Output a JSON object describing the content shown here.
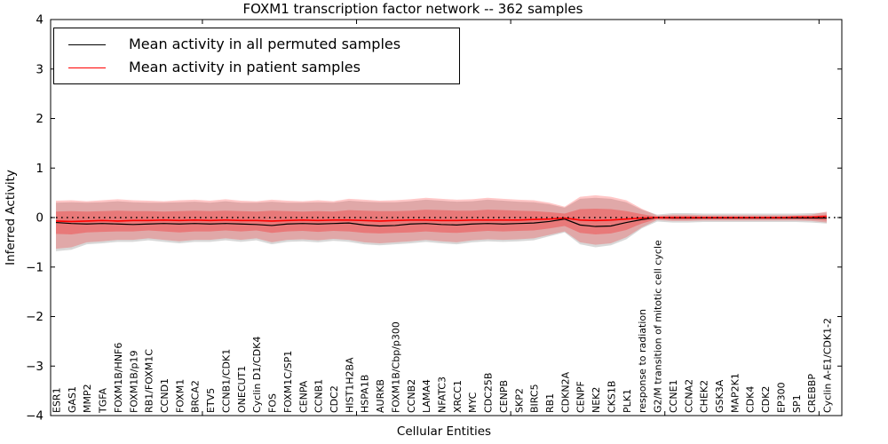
{
  "figure": {
    "title": "FOXM1 transcription factor network -- 362 samples"
  },
  "chart_data": {
    "type": "line",
    "title": "FOXM1 transcription factor network -- 362 samples",
    "xlabel": "Cellular Entities",
    "ylabel": "Inferred Activity",
    "ylim": [
      -4,
      4
    ],
    "yticks": [
      -4,
      -3,
      -2,
      -1,
      0,
      1,
      2,
      3,
      4
    ],
    "x_major_tick_interval": 10,
    "grid": false,
    "legend_position": "upper left",
    "zero_line": {
      "style": "dotted",
      "color": "#000000",
      "y": 0
    },
    "categories": [
      "ESR1",
      "GAS1",
      "MMP2",
      "TGFA",
      "FOXM1B/HNF6",
      "FOXM1B/p19",
      "RB1/FOXM1C",
      "CCND1",
      "FOXM1",
      "BRCA2",
      "ETV5",
      "CCNB1/CDK1",
      "ONECUT1",
      "Cyclin D1/CDK4",
      "FOS",
      "FOXM1C/SP1",
      "CENPA",
      "CCNB1",
      "CDC2",
      "HIST1H2BA",
      "HSPA1B",
      "AURKB",
      "FOXM1B/Cbp/p300",
      "CCNB2",
      "LAMA4",
      "NFATC3",
      "XRCC1",
      "MYC",
      "CDC25B",
      "CENPB",
      "SKP2",
      "BIRC5",
      "RB1",
      "CDKN2A",
      "CENPF",
      "NEK2",
      "CKS1B",
      "PLK1",
      "response to radiation",
      "G2/M transition of mitotic cell cycle",
      "CCNE1",
      "CCNA2",
      "CHEK2",
      "GSK3A",
      "MAP2K1",
      "CDK4",
      "CDK2",
      "EP300",
      "SP1",
      "CREBBP",
      "Cyclin A-E1/CDK1-2"
    ],
    "series": [
      {
        "name": "Mean activity in all permuted samples",
        "color": "#000000",
        "values": [
          -0.1,
          -0.12,
          -0.13,
          -0.12,
          -0.13,
          -0.14,
          -0.13,
          -0.12,
          -0.13,
          -0.12,
          -0.13,
          -0.12,
          -0.13,
          -0.14,
          -0.16,
          -0.13,
          -0.12,
          -0.13,
          -0.12,
          -0.11,
          -0.15,
          -0.17,
          -0.16,
          -0.13,
          -0.12,
          -0.14,
          -0.15,
          -0.13,
          -0.12,
          -0.13,
          -0.12,
          -0.11,
          -0.08,
          -0.03,
          -0.15,
          -0.18,
          -0.17,
          -0.1,
          -0.04,
          0.0,
          -0.01,
          -0.01,
          -0.01,
          -0.01,
          -0.01,
          -0.01,
          -0.01,
          -0.01,
          -0.01,
          -0.01,
          -0.01
        ]
      },
      {
        "name": "Mean activity in patient samples",
        "color": "#ff0000",
        "values": [
          -0.07,
          -0.08,
          -0.07,
          -0.06,
          -0.07,
          -0.06,
          -0.06,
          -0.05,
          -0.06,
          -0.05,
          -0.06,
          -0.05,
          -0.06,
          -0.06,
          -0.07,
          -0.06,
          -0.05,
          -0.06,
          -0.05,
          -0.05,
          -0.06,
          -0.07,
          -0.06,
          -0.05,
          -0.05,
          -0.06,
          -0.06,
          -0.05,
          -0.05,
          -0.05,
          -0.05,
          -0.04,
          -0.03,
          -0.01,
          -0.05,
          -0.06,
          -0.05,
          -0.03,
          -0.01,
          0.0,
          0.0,
          0.0,
          0.0,
          0.0,
          0.0,
          0.0,
          0.0,
          0.0,
          0.01,
          0.01,
          0.02
        ]
      }
    ],
    "bands": [
      {
        "name": "permuted-samples-range",
        "color": "#9e9e9e",
        "opacity": 0.4,
        "upper": [
          0.3,
          0.31,
          0.3,
          0.31,
          0.33,
          0.31,
          0.3,
          0.3,
          0.31,
          0.32,
          0.3,
          0.33,
          0.3,
          0.3,
          0.32,
          0.3,
          0.3,
          0.31,
          0.3,
          0.34,
          0.32,
          0.31,
          0.31,
          0.33,
          0.36,
          0.34,
          0.32,
          0.33,
          0.36,
          0.34,
          0.32,
          0.31,
          0.27,
          0.2,
          0.38,
          0.4,
          0.38,
          0.31,
          0.16,
          0.06,
          0.09,
          0.09,
          0.08,
          0.08,
          0.08,
          0.08,
          0.08,
          0.08,
          0.08,
          0.09,
          0.1
        ],
        "lower": [
          -0.68,
          -0.65,
          -0.54,
          -0.52,
          -0.49,
          -0.49,
          -0.46,
          -0.49,
          -0.52,
          -0.49,
          -0.49,
          -0.46,
          -0.49,
          -0.46,
          -0.54,
          -0.49,
          -0.48,
          -0.5,
          -0.47,
          -0.49,
          -0.54,
          -0.56,
          -0.54,
          -0.52,
          -0.49,
          -0.52,
          -0.54,
          -0.5,
          -0.48,
          -0.49,
          -0.48,
          -0.46,
          -0.38,
          -0.3,
          -0.54,
          -0.6,
          -0.56,
          -0.44,
          -0.22,
          -0.08,
          -0.1,
          -0.1,
          -0.09,
          -0.09,
          -0.09,
          -0.09,
          -0.09,
          -0.09,
          -0.09,
          -0.1,
          -0.12
        ]
      },
      {
        "name": "patient-samples-range-outer",
        "color": "#ff0000",
        "opacity": 0.22,
        "upper": [
          0.34,
          0.35,
          0.33,
          0.35,
          0.37,
          0.35,
          0.34,
          0.33,
          0.35,
          0.36,
          0.34,
          0.37,
          0.34,
          0.33,
          0.36,
          0.34,
          0.33,
          0.35,
          0.33,
          0.38,
          0.36,
          0.34,
          0.35,
          0.37,
          0.4,
          0.38,
          0.36,
          0.37,
          0.4,
          0.38,
          0.36,
          0.35,
          0.3,
          0.22,
          0.42,
          0.45,
          0.42,
          0.35,
          0.18,
          0.04,
          0.06,
          0.06,
          0.05,
          0.05,
          0.05,
          0.05,
          0.05,
          0.05,
          0.05,
          0.06,
          0.12
        ],
        "lower": [
          -0.63,
          -0.6,
          -0.5,
          -0.48,
          -0.45,
          -0.45,
          -0.42,
          -0.45,
          -0.48,
          -0.45,
          -0.45,
          -0.42,
          -0.45,
          -0.42,
          -0.5,
          -0.45,
          -0.44,
          -0.46,
          -0.43,
          -0.45,
          -0.5,
          -0.52,
          -0.5,
          -0.48,
          -0.45,
          -0.48,
          -0.5,
          -0.46,
          -0.44,
          -0.45,
          -0.44,
          -0.42,
          -0.35,
          -0.28,
          -0.5,
          -0.55,
          -0.52,
          -0.4,
          -0.2,
          -0.05,
          -0.07,
          -0.07,
          -0.06,
          -0.06,
          -0.06,
          -0.06,
          -0.06,
          -0.06,
          -0.06,
          -0.07,
          -0.1
        ]
      },
      {
        "name": "patient-samples-range-inner",
        "color": "#ff0000",
        "opacity": 0.28,
        "upper": [
          0.12,
          0.13,
          0.12,
          0.13,
          0.14,
          0.13,
          0.13,
          0.12,
          0.13,
          0.14,
          0.13,
          0.14,
          0.13,
          0.12,
          0.14,
          0.13,
          0.12,
          0.13,
          0.12,
          0.15,
          0.14,
          0.13,
          0.13,
          0.14,
          0.16,
          0.15,
          0.14,
          0.14,
          0.16,
          0.15,
          0.14,
          0.13,
          0.11,
          0.08,
          0.17,
          0.18,
          0.17,
          0.13,
          0.07,
          0.02,
          0.03,
          0.03,
          0.02,
          0.02,
          0.02,
          0.02,
          0.02,
          0.02,
          0.02,
          0.03,
          0.06
        ],
        "lower": [
          -0.33,
          -0.34,
          -0.3,
          -0.29,
          -0.28,
          -0.28,
          -0.26,
          -0.28,
          -0.3,
          -0.28,
          -0.28,
          -0.26,
          -0.28,
          -0.26,
          -0.31,
          -0.28,
          -0.27,
          -0.29,
          -0.27,
          -0.28,
          -0.31,
          -0.32,
          -0.31,
          -0.3,
          -0.28,
          -0.3,
          -0.31,
          -0.29,
          -0.27,
          -0.28,
          -0.27,
          -0.26,
          -0.22,
          -0.17,
          -0.31,
          -0.34,
          -0.32,
          -0.25,
          -0.12,
          -0.03,
          -0.04,
          -0.04,
          -0.03,
          -0.03,
          -0.03,
          -0.03,
          -0.03,
          -0.03,
          -0.03,
          -0.04,
          -0.06
        ]
      }
    ]
  }
}
